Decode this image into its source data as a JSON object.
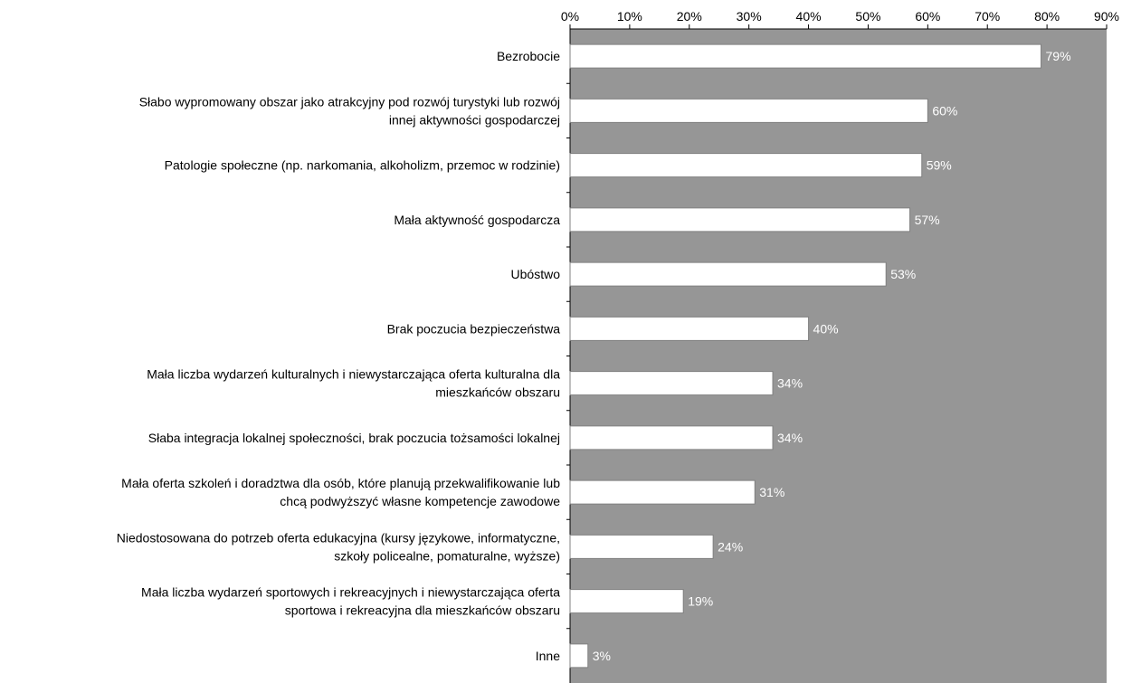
{
  "chart_data": {
    "type": "bar",
    "orientation": "horizontal",
    "title": "",
    "xlabel": "",
    "ylabel": "",
    "xlim": [
      0,
      90
    ],
    "x_ticks": [
      0,
      10,
      20,
      30,
      40,
      50,
      60,
      70,
      80,
      90
    ],
    "x_tick_labels": [
      "0%",
      "10%",
      "20%",
      "30%",
      "40%",
      "50%",
      "60%",
      "70%",
      "80%",
      "90%"
    ],
    "axis_position": "top",
    "grid": false,
    "legend": "none",
    "categories": [
      [
        "Bezrobocie"
      ],
      [
        "Słabo wypromowany obszar jako atrakcyjny pod rozwój turystyki lub rozwój",
        "innej aktywności gospodarczej"
      ],
      [
        "Patologie społeczne (np. narkomania, alkoholizm, przemoc w rodzinie)"
      ],
      [
        "Mała aktywność gospodarcza"
      ],
      [
        "Ubóstwo"
      ],
      [
        "Brak poczucia bezpieczeństwa"
      ],
      [
        "Mała liczba wydarzeń kulturalnych i niewystarczająca oferta kulturalna dla",
        "mieszkańców obszaru"
      ],
      [
        "Słaba integracja lokalnej społeczności, brak poczucia tożsamości lokalnej"
      ],
      [
        "Mała oferta szkoleń i doradztwa dla osób, które planują przekwalifikowanie lub",
        "chcą podwyższyć własne kompetencje zawodowe"
      ],
      [
        "Niedostosowana do potrzeb oferta edukacyjna (kursy językowe, informatyczne,",
        "szkoły policealne, pomaturalne, wyższe)"
      ],
      [
        "Mała liczba wydarzeń sportowych i rekreacyjnych i niewystarczająca oferta",
        "sportowa i rekreacyjna dla mieszkańców obszaru"
      ],
      [
        "Inne"
      ]
    ],
    "values": [
      79,
      60,
      59,
      57,
      53,
      40,
      34,
      34,
      31,
      24,
      19,
      3
    ],
    "value_labels": [
      "79%",
      "60%",
      "59%",
      "57%",
      "53%",
      "40%",
      "34%",
      "34%",
      "31%",
      "24%",
      "19%",
      "3%"
    ],
    "colors": {
      "plot_background": "#969696",
      "bar_fill": "#ffffff",
      "bar_stroke": "#808080",
      "data_label": "#ffffff",
      "axis": "#000000"
    }
  }
}
